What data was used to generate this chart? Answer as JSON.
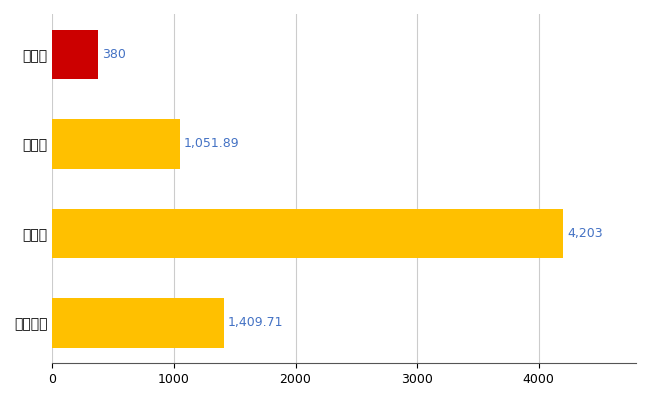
{
  "categories": [
    "全国平均",
    "県最大",
    "県平均",
    "高萩市"
  ],
  "values": [
    1409.71,
    4203,
    1051.89,
    380
  ],
  "bar_colors": [
    "#FFC000",
    "#FFC000",
    "#FFC000",
    "#CC0000"
  ],
  "labels": [
    "1,409.71",
    "4,203",
    "1,051.89",
    "380"
  ],
  "label_color": "#4472C4",
  "xlim": [
    0,
    4800
  ],
  "figsize": [
    6.5,
    4.0
  ],
  "dpi": 100,
  "bg_color": "#FFFFFF",
  "grid_color": "#CCCCCC",
  "bar_height": 0.55,
  "label_fontsize": 9,
  "tick_fontsize": 9,
  "ylabel_fontsize": 10
}
